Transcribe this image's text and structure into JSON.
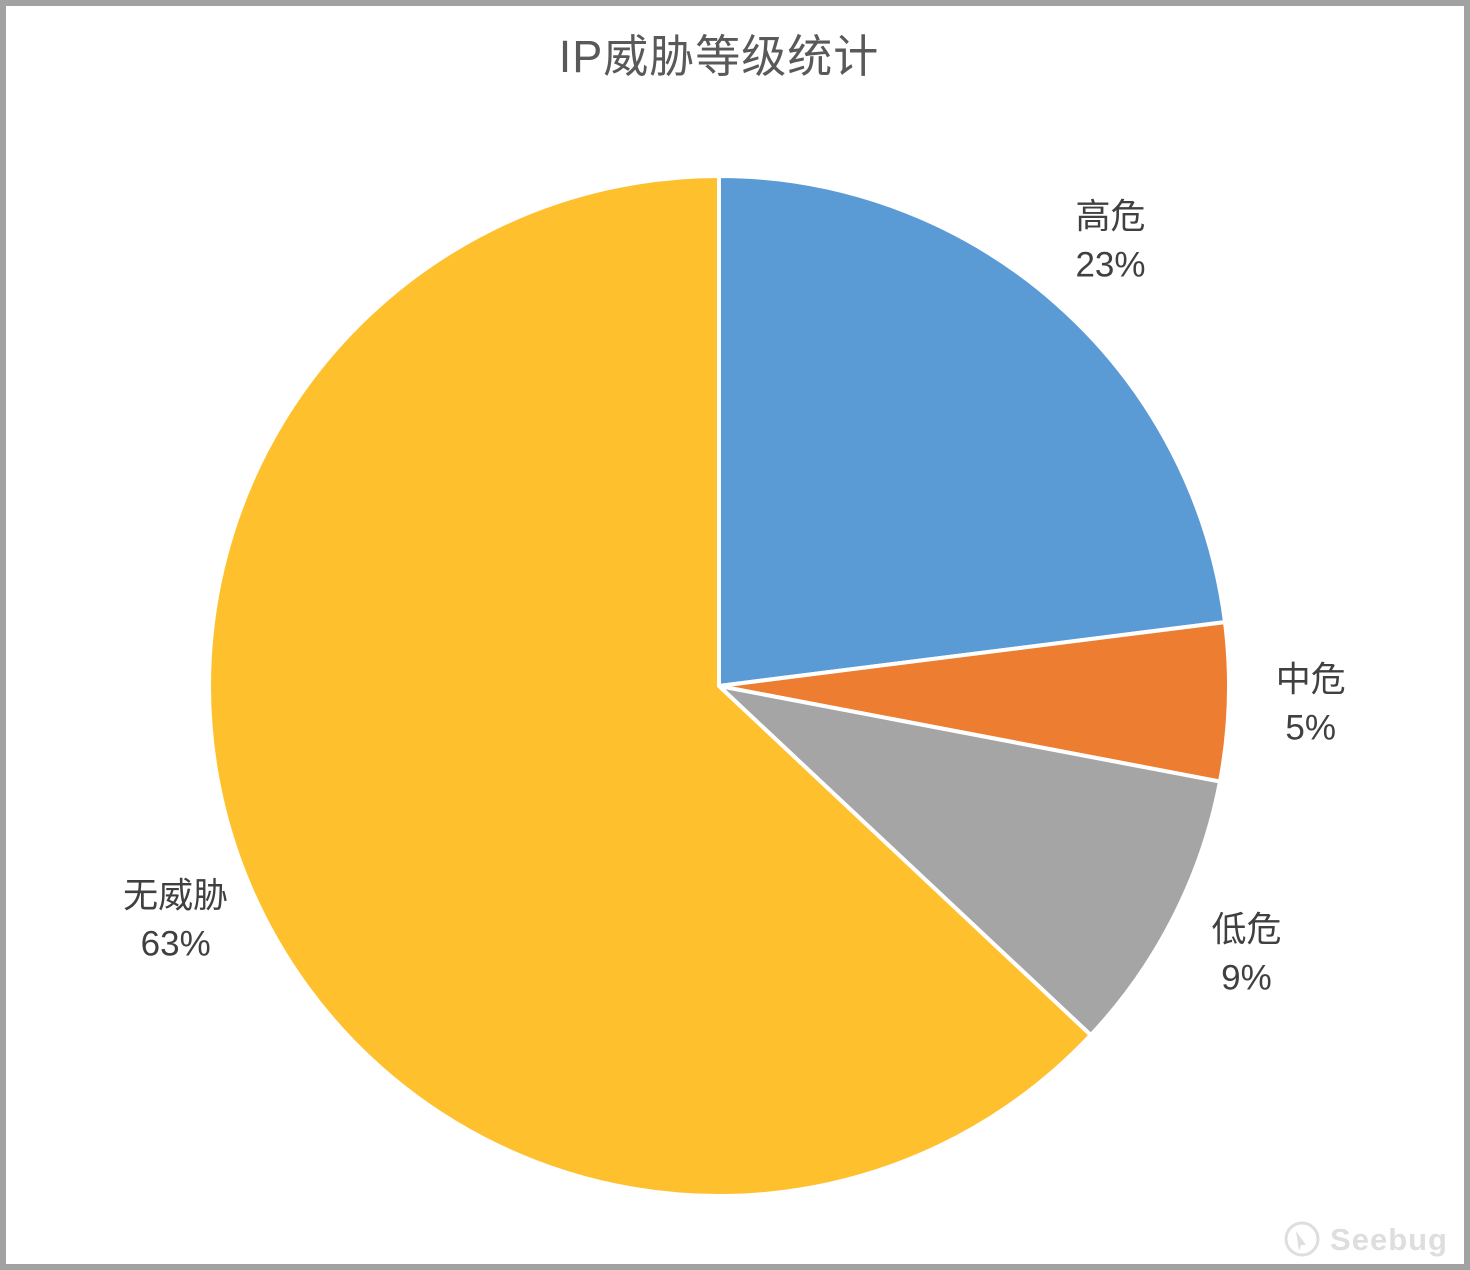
{
  "chart_data": {
    "type": "pie",
    "title": "IP威胁等级统计",
    "title_color": "#595959",
    "label_color": "#404040",
    "start_angle": "top",
    "direction": "clockwise",
    "labels_position": "outside",
    "legend": "none",
    "slice_separator_color": "#FFFFFF",
    "background": "#FFFFFF",
    "slices": [
      {
        "label": "高危",
        "value": 23,
        "percent_label": "23%",
        "color": "#5B9BD5"
      },
      {
        "label": "中危",
        "value": 5,
        "percent_label": "5%",
        "color": "#ED7D31"
      },
      {
        "label": "低危",
        "value": 9,
        "percent_label": "9%",
        "color": "#A5A5A5"
      },
      {
        "label": "无威胁",
        "value": 63,
        "percent_label": "63%",
        "color": "#FFC02E"
      }
    ]
  },
  "watermark": {
    "text": "Seebug",
    "color": "#DEDEDE"
  }
}
